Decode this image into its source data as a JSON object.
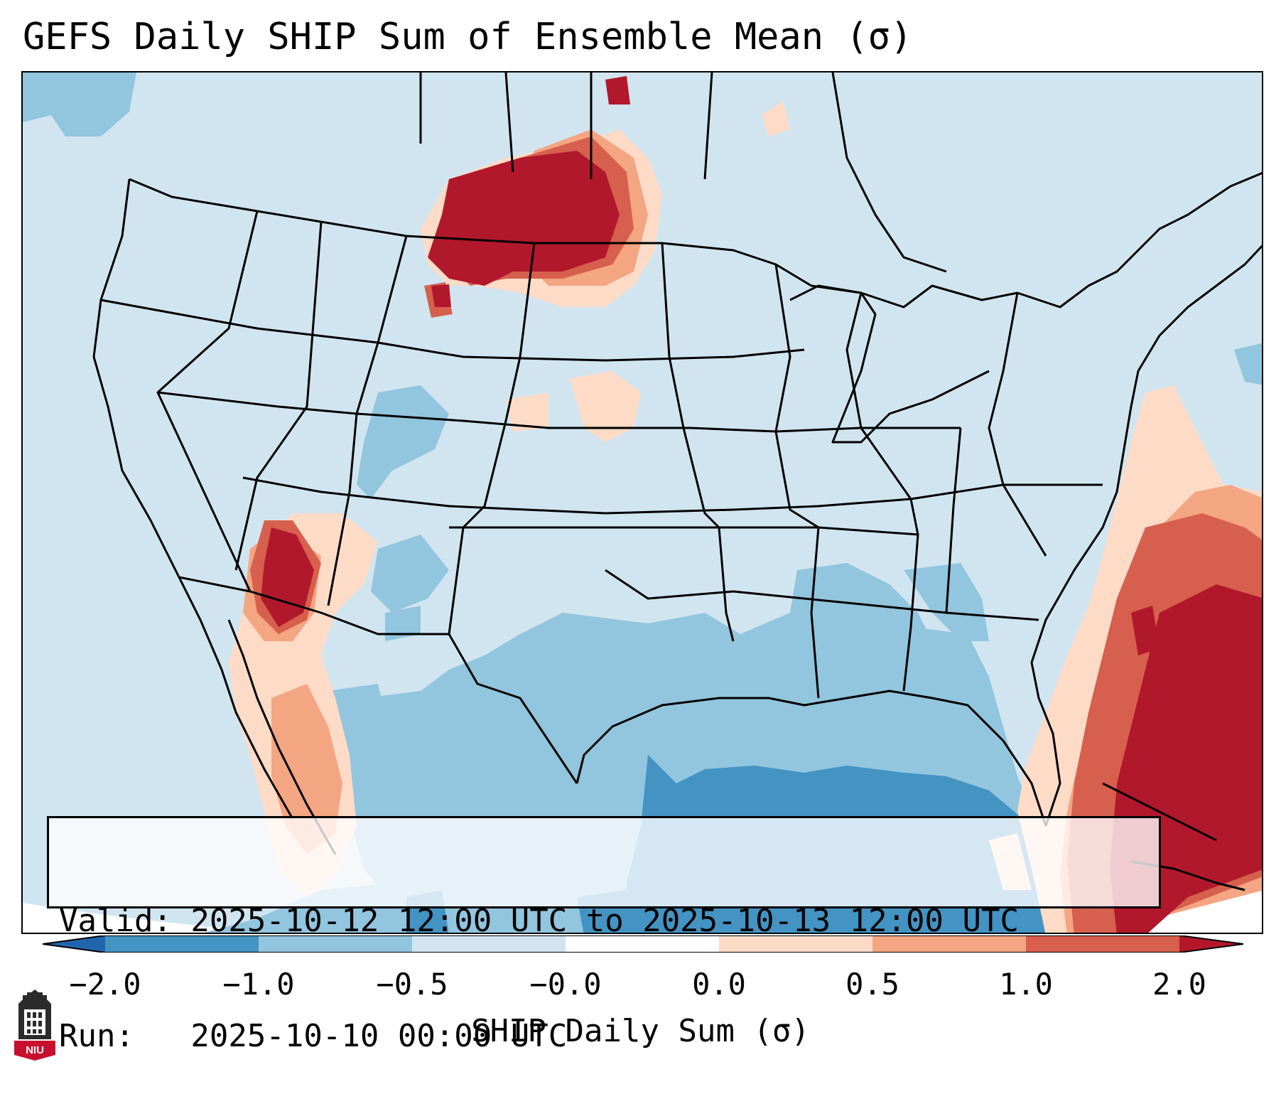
{
  "title": "GEFS Daily SHIP Sum of Ensemble Mean (σ)",
  "info": {
    "valid_line": "Valid: 2025-10-12 12:00 UTC to 2025-10-13 12:00 UTC",
    "run_line": "Run:   2025-10-10 00:00 UTC"
  },
  "colorbar": {
    "title": "SHIP Daily Sum (σ)",
    "tick_labels": [
      "−2.0",
      "−1.0",
      "−0.5",
      "−0.0",
      "0.0",
      "0.5",
      "1.0",
      "2.0"
    ],
    "colors": [
      "#2166ac",
      "#4393c3",
      "#92c5de",
      "#d1e5f0",
      "#fddbc7",
      "#f4a582",
      "#d6604d",
      "#b2182b"
    ]
  },
  "map": {
    "background_color": "#d1e5f0",
    "line_color": "#000000"
  },
  "logo": {
    "text": "NIU",
    "color": "#c8102e"
  }
}
